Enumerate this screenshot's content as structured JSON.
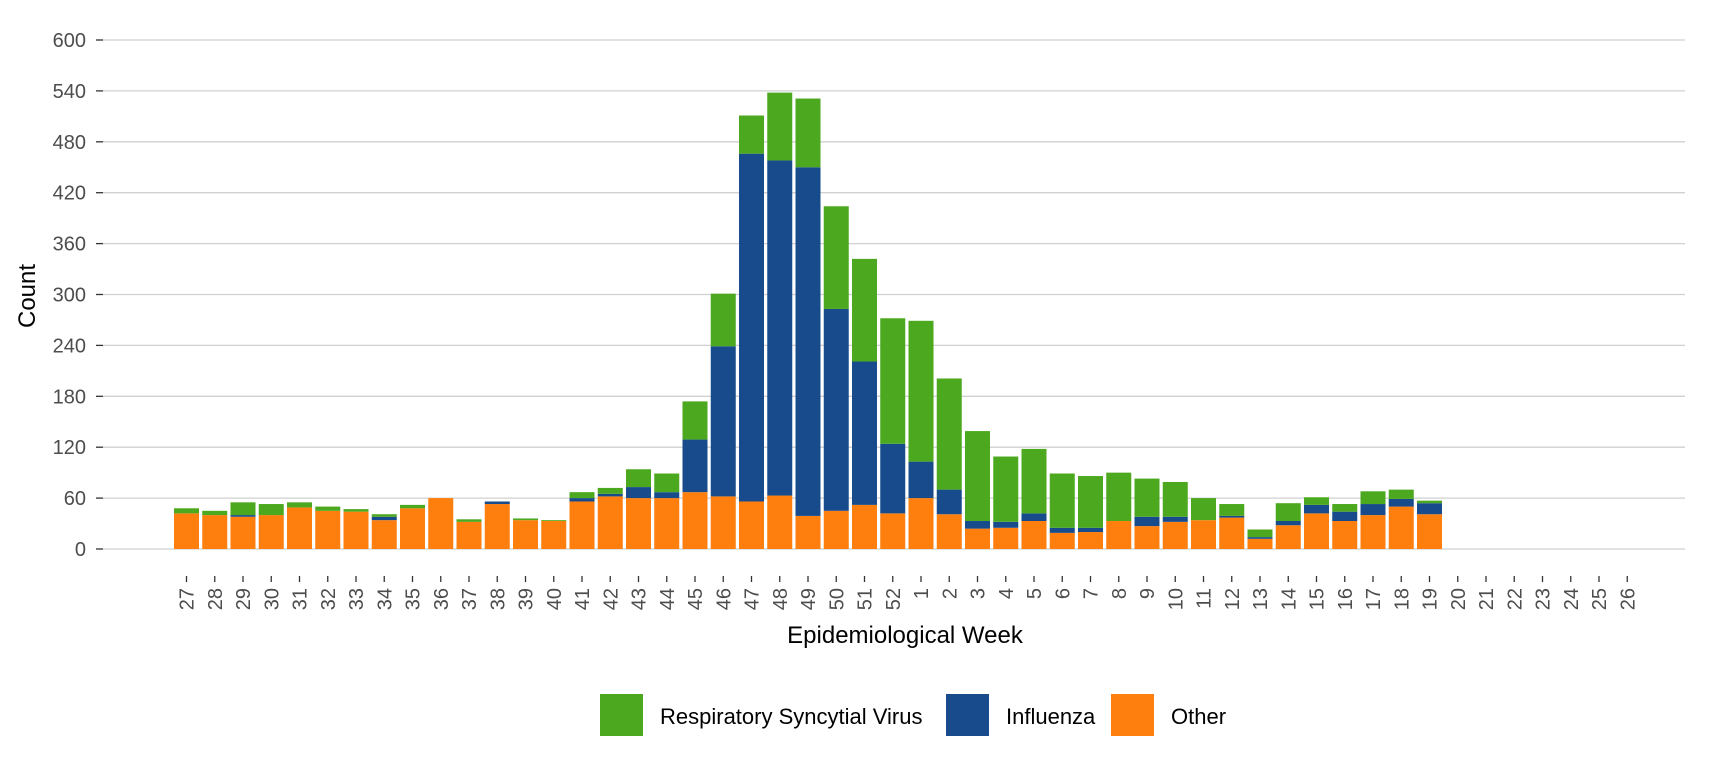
{
  "chart_data": {
    "type": "bar",
    "stacked": true,
    "title": "",
    "xlabel": "Epidemiological Week",
    "ylabel": "Count",
    "ylim": [
      0,
      600
    ],
    "yticks": [
      0,
      60,
      120,
      180,
      240,
      300,
      360,
      420,
      480,
      540,
      600
    ],
    "grid": "horizontal",
    "legend_position": "bottom",
    "categories": [
      "27",
      "28",
      "29",
      "30",
      "31",
      "32",
      "33",
      "34",
      "35",
      "36",
      "37",
      "38",
      "39",
      "40",
      "41",
      "42",
      "43",
      "44",
      "45",
      "46",
      "47",
      "48",
      "49",
      "50",
      "51",
      "52",
      "1",
      "2",
      "3",
      "4",
      "5",
      "6",
      "7",
      "8",
      "9",
      "10",
      "11",
      "12",
      "13",
      "14",
      "15",
      "16",
      "17",
      "18",
      "19",
      "20",
      "21",
      "22",
      "23",
      "24",
      "25",
      "26"
    ],
    "series": [
      {
        "name": "Other",
        "color": "#ff7f0e",
        "values": [
          42,
          40,
          38,
          40,
          49,
          45,
          44,
          34,
          48,
          60,
          32,
          53,
          34,
          33,
          56,
          62,
          60,
          60,
          67,
          62,
          56,
          63,
          39,
          45,
          52,
          42,
          60,
          41,
          24,
          25,
          33,
          19,
          20,
          33,
          27,
          32,
          34,
          37,
          12,
          28,
          42,
          33,
          40,
          50,
          41,
          0,
          0,
          0,
          0,
          0,
          0,
          0
        ]
      },
      {
        "name": "Influenza",
        "color": "#174b8c",
        "values": [
          0,
          0,
          2,
          0,
          0,
          0,
          0,
          4,
          0,
          0,
          0,
          3,
          0,
          0,
          4,
          3,
          13,
          7,
          62,
          177,
          410,
          395,
          411,
          238,
          169,
          82,
          43,
          29,
          9,
          7,
          9,
          6,
          5,
          0,
          11,
          6,
          0,
          2,
          2,
          5,
          10,
          11,
          13,
          9,
          13,
          0,
          0,
          0,
          0,
          0,
          0,
          0
        ]
      },
      {
        "name": "Respiratory Syncytial Virus",
        "color": "#4ca81e",
        "values": [
          6,
          5,
          15,
          13,
          6,
          5,
          3,
          3,
          4,
          0,
          3,
          0,
          2,
          1,
          7,
          7,
          21,
          22,
          45,
          62,
          45,
          80,
          81,
          121,
          121,
          148,
          166,
          131,
          106,
          77,
          76,
          64,
          61,
          57,
          45,
          41,
          26,
          14,
          9,
          21,
          9,
          9,
          15,
          11,
          3,
          0,
          0,
          0,
          0,
          0,
          0,
          0
        ]
      }
    ],
    "legend_order": [
      "Respiratory Syncytial Virus",
      "Influenza",
      "Other"
    ]
  }
}
